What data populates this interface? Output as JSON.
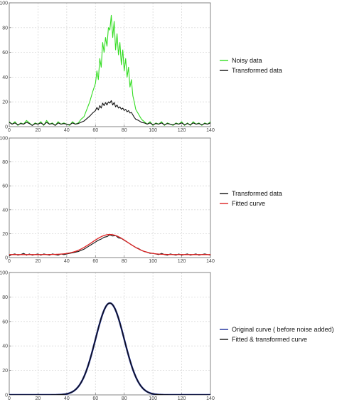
{
  "colors": {
    "noisy": "#33dd22",
    "transformed": "#111111",
    "fitted": "#dd2222",
    "original": "#1a2a99",
    "fitted_transformed": "#111111",
    "grid": "#d9d9d9",
    "frame": "#777777"
  },
  "chart_data": [
    {
      "type": "line",
      "xlim": [
        0,
        140
      ],
      "ylim": [
        0,
        100
      ],
      "xticks": [
        0,
        20,
        40,
        60,
        80,
        100,
        120,
        140
      ],
      "yticks": [
        0,
        20,
        40,
        60,
        80,
        100
      ],
      "grid": true,
      "legend_placement": "right",
      "series": [
        {
          "name": "Noisy data",
          "color": "#33dd22",
          "x": [
            0,
            2,
            4,
            6,
            8,
            10,
            12,
            14,
            16,
            18,
            20,
            22,
            24,
            26,
            28,
            30,
            32,
            34,
            36,
            38,
            40,
            42,
            44,
            46,
            48,
            50,
            52,
            54,
            56,
            58,
            60,
            61,
            62,
            63,
            64,
            65,
            66,
            67,
            68,
            69,
            70,
            71,
            72,
            73,
            74,
            75,
            76,
            77,
            78,
            79,
            80,
            81,
            82,
            83,
            84,
            85,
            86,
            87,
            88,
            90,
            92,
            94,
            96,
            98,
            100,
            102,
            104,
            106,
            108,
            110,
            112,
            114,
            116,
            118,
            120,
            122,
            124,
            126,
            128,
            130,
            132,
            134,
            136,
            138,
            140
          ],
          "y": [
            4,
            2,
            4,
            1,
            3,
            2,
            5,
            3,
            1,
            3,
            2,
            4,
            1,
            5,
            2,
            3,
            1,
            4,
            2,
            3,
            2,
            1,
            4,
            2,
            3,
            6,
            8,
            14,
            20,
            28,
            35,
            45,
            38,
            55,
            48,
            68,
            60,
            72,
            65,
            80,
            78,
            90,
            72,
            85,
            62,
            75,
            58,
            68,
            50,
            62,
            45,
            55,
            40,
            48,
            32,
            38,
            25,
            20,
            14,
            10,
            6,
            4,
            2,
            4,
            1,
            3,
            2,
            4,
            1,
            3,
            2,
            1,
            3,
            2,
            4,
            1,
            3,
            1,
            4,
            2,
            3,
            1,
            3,
            2,
            4
          ]
        },
        {
          "name": "Transformed data",
          "color": "#111111",
          "x": [
            0,
            2,
            4,
            6,
            8,
            10,
            12,
            14,
            16,
            18,
            20,
            22,
            24,
            26,
            28,
            30,
            32,
            34,
            36,
            38,
            40,
            42,
            44,
            46,
            48,
            50,
            52,
            54,
            56,
            58,
            60,
            61,
            62,
            63,
            64,
            65,
            66,
            67,
            68,
            69,
            70,
            71,
            72,
            73,
            74,
            75,
            76,
            77,
            78,
            79,
            80,
            81,
            82,
            83,
            84,
            85,
            86,
            87,
            88,
            90,
            92,
            94,
            96,
            98,
            100,
            102,
            104,
            106,
            108,
            110,
            112,
            114,
            116,
            118,
            120,
            122,
            124,
            126,
            128,
            130,
            132,
            134,
            136,
            138,
            140
          ],
          "y": [
            3.5,
            2,
            3,
            1.5,
            2.5,
            2,
            3.5,
            2.5,
            1,
            2.5,
            2,
            3,
            1.5,
            3.5,
            2,
            2.5,
            1,
            3,
            2,
            2.5,
            2,
            1.5,
            3,
            2,
            2.5,
            3.5,
            4.5,
            6.5,
            8.5,
            11,
            13,
            15.5,
            13.5,
            17,
            15,
            19,
            17,
            19.5,
            17.5,
            20,
            19,
            21,
            17.5,
            19.5,
            16,
            17.5,
            15,
            16,
            14,
            15,
            13,
            14,
            12,
            13,
            11,
            11.5,
            9.5,
            7.5,
            6,
            5,
            3.5,
            3,
            2,
            3,
            1.5,
            2.5,
            2,
            3,
            1.5,
            2.5,
            2,
            1.5,
            2.5,
            2,
            3,
            1.5,
            2.5,
            1.5,
            3,
            2,
            2.5,
            1.5,
            2.5,
            2,
            3
          ]
        }
      ]
    },
    {
      "type": "line",
      "xlim": [
        0,
        140
      ],
      "ylim": [
        0,
        100
      ],
      "xticks": [
        0,
        20,
        40,
        60,
        80,
        100,
        120,
        140
      ],
      "yticks": [
        0,
        20,
        40,
        60,
        80,
        100
      ],
      "grid": true,
      "legend_placement": "right",
      "series": [
        {
          "name": "Transformed data",
          "color": "#111111",
          "x": [
            0,
            2,
            4,
            6,
            8,
            10,
            12,
            14,
            16,
            18,
            20,
            22,
            24,
            26,
            28,
            30,
            32,
            34,
            36,
            38,
            40,
            42,
            44,
            46,
            48,
            50,
            52,
            54,
            56,
            58,
            60,
            62,
            64,
            66,
            68,
            70,
            72,
            74,
            76,
            78,
            80,
            82,
            84,
            86,
            88,
            90,
            92,
            94,
            96,
            98,
            100,
            102,
            104,
            106,
            108,
            110,
            112,
            114,
            116,
            118,
            120,
            122,
            124,
            126,
            128,
            130,
            132,
            134,
            136,
            138,
            140
          ],
          "y": [
            1.5,
            2.5,
            3,
            2,
            2.5,
            3.5,
            2,
            3,
            2,
            2.5,
            3,
            2,
            3,
            2.5,
            2,
            3,
            2.5,
            2,
            3,
            2.5,
            3,
            3.5,
            4,
            4.5,
            5,
            6,
            7,
            8.5,
            10,
            11.5,
            13,
            14.5,
            15.5,
            17,
            17.5,
            19,
            18,
            18.5,
            16.5,
            16,
            14.5,
            13,
            11.5,
            10,
            8.5,
            7.5,
            6,
            5,
            4.5,
            3.5,
            3.5,
            3,
            2.5,
            3.5,
            2.5,
            2,
            3,
            2.5,
            2,
            3,
            2,
            2.5,
            3,
            2,
            2.5,
            3,
            2,
            2.5,
            3,
            2.5,
            2
          ]
        },
        {
          "name": "Fitted curve",
          "color": "#dd2222",
          "amplitude": 16.8,
          "center": 70,
          "sigma": 12.5,
          "baseline": 2.5
        }
      ]
    },
    {
      "type": "line",
      "xlim": [
        0,
        140
      ],
      "ylim": [
        0,
        100
      ],
      "xticks": [
        0,
        20,
        40,
        60,
        80,
        100,
        120,
        140
      ],
      "yticks": [
        0,
        20,
        40,
        60,
        80,
        100
      ],
      "grid": true,
      "legend_placement": "right",
      "series": [
        {
          "name": "Original curve ( before noise added)",
          "color": "#1a2a99",
          "amplitude": 75,
          "center": 70,
          "sigma": 10,
          "baseline": 0
        },
        {
          "name": "Fitted & transformed curve",
          "color": "#111111",
          "amplitude": 75,
          "center": 70,
          "sigma": 10,
          "baseline": 0
        }
      ]
    }
  ]
}
